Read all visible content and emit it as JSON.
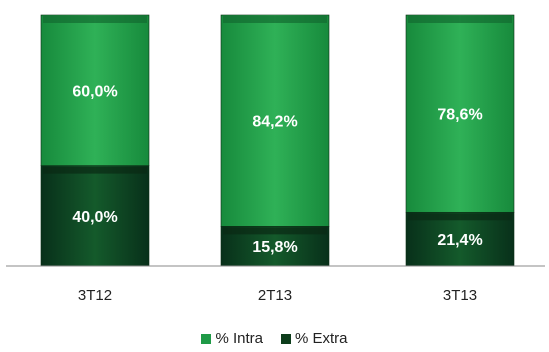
{
  "chart_data": {
    "type": "bar",
    "stacked": true,
    "normalized": true,
    "categories": [
      "3T12",
      "2T13",
      "3T13"
    ],
    "series": [
      {
        "name": "% Extra",
        "values": [
          40.0,
          15.8,
          21.4
        ],
        "labels": [
          "40,0%",
          "15,8%",
          "21,4%"
        ],
        "color": "#0d3d1b"
      },
      {
        "name": "% Intra",
        "values": [
          60.0,
          84.2,
          78.6
        ],
        "labels": [
          "60,0%",
          "84,2%",
          "78,6%"
        ],
        "color": "#1f9a47"
      }
    ],
    "ylim": [
      0,
      100
    ],
    "grid": false,
    "legend_position": "bottom"
  },
  "legend": {
    "items": [
      {
        "label": "% Intra",
        "color": "#1f9a47"
      },
      {
        "label": "% Extra",
        "color": "#0d3d1b"
      }
    ]
  }
}
